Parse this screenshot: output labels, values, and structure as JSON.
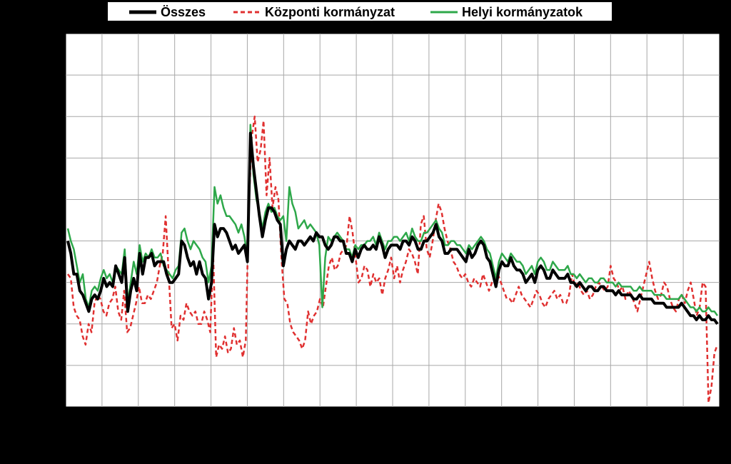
{
  "chart_data": {
    "type": "line",
    "title": "",
    "xlabel": "",
    "ylabel": "",
    "ylim": [
      0,
      9
    ],
    "x_gridlines": 18,
    "grid": true,
    "legend_position": "top",
    "series": [
      {
        "name": "Összes",
        "color": "#000000",
        "style": "solid-thick",
        "values": [
          4.0,
          3.7,
          3.2,
          3.2,
          2.8,
          2.7,
          2.5,
          2.3,
          2.6,
          2.7,
          2.6,
          2.8,
          3.1,
          2.9,
          3.0,
          2.9,
          3.4,
          3.2,
          3.0,
          3.6,
          2.3,
          2.8,
          3.1,
          2.8,
          3.7,
          3.2,
          3.6,
          3.6,
          3.7,
          3.4,
          3.5,
          3.5,
          3.5,
          3.2,
          3.0,
          3.0,
          3.1,
          3.2,
          4.0,
          3.9,
          3.6,
          3.4,
          3.5,
          3.2,
          3.5,
          3.2,
          3.1,
          2.6,
          3.0,
          4.4,
          4.1,
          4.3,
          4.3,
          4.2,
          4.0,
          3.8,
          3.9,
          3.7,
          3.8,
          3.9,
          3.5,
          6.6,
          5.8,
          5.2,
          4.6,
          4.1,
          4.5,
          4.8,
          4.8,
          4.7,
          4.5,
          4.4,
          3.4,
          3.8,
          4.0,
          3.9,
          3.8,
          4.0,
          4.0,
          3.9,
          4.0,
          4.1,
          4.0,
          4.2,
          4.1,
          4.1,
          3.9,
          3.8,
          3.9,
          4.1,
          4.1,
          4.0,
          4.0,
          3.7,
          3.7,
          3.5,
          3.8,
          3.6,
          3.8,
          3.9,
          3.8,
          3.8,
          3.9,
          3.8,
          4.1,
          3.9,
          3.6,
          3.8,
          3.9,
          3.9,
          3.9,
          3.8,
          4.0,
          4.0,
          3.9,
          4.1,
          4.0,
          3.8,
          3.8,
          4.0,
          4.0,
          4.1,
          4.2,
          4.4,
          4.1,
          4.0,
          3.7,
          3.7,
          3.8,
          3.8,
          3.8,
          3.7,
          3.6,
          3.5,
          3.8,
          3.6,
          3.7,
          3.9,
          4.0,
          3.9,
          3.6,
          3.5,
          3.2,
          2.9,
          3.3,
          3.5,
          3.4,
          3.4,
          3.6,
          3.4,
          3.3,
          3.3,
          3.2,
          3.0,
          3.1,
          3.2,
          3.0,
          3.3,
          3.4,
          3.3,
          3.1,
          3.1,
          3.3,
          3.2,
          3.1,
          3.1,
          3.1,
          3.2,
          3.0,
          3.0,
          2.9,
          3.0,
          2.9,
          2.8,
          2.9,
          2.9,
          2.8,
          2.8,
          2.9,
          2.9,
          2.8,
          2.8,
          2.8,
          2.7,
          2.8,
          2.7,
          2.7,
          2.7,
          2.7,
          2.6,
          2.6,
          2.7,
          2.6,
          2.6,
          2.6,
          2.6,
          2.5,
          2.5,
          2.5,
          2.5,
          2.4,
          2.4,
          2.4,
          2.4,
          2.4,
          2.5,
          2.4,
          2.3,
          2.2,
          2.2,
          2.1,
          2.2,
          2.1,
          2.1,
          2.2,
          2.1,
          2.1,
          2.0
        ]
      },
      {
        "name": "Központi kormányzat",
        "color": "#e03030",
        "style": "dashed",
        "values": [
          3.2,
          3.1,
          2.4,
          2.2,
          2.1,
          1.7,
          1.5,
          2.0,
          1.8,
          2.5,
          2.7,
          2.6,
          2.3,
          2.2,
          2.5,
          2.6,
          2.9,
          2.3,
          2.1,
          2.8,
          1.8,
          1.9,
          2.2,
          2.5,
          2.9,
          2.5,
          2.5,
          2.7,
          2.6,
          2.8,
          3.0,
          3.4,
          3.7,
          4.6,
          3.2,
          1.9,
          2.0,
          1.6,
          2.2,
          2.1,
          2.5,
          2.3,
          2.2,
          2.3,
          2.0,
          2.0,
          2.3,
          2.1,
          1.8,
          3.7,
          1.2,
          1.5,
          1.4,
          1.7,
          1.3,
          1.4,
          1.9,
          1.5,
          1.6,
          1.2,
          1.6,
          4.8,
          6.5,
          7.0,
          5.9,
          6.2,
          6.9,
          5.1,
          6.0,
          4.8,
          5.3,
          5.0,
          3.6,
          2.6,
          2.5,
          2.0,
          1.8,
          1.7,
          1.6,
          1.4,
          1.6,
          2.3,
          2.0,
          2.2,
          2.3,
          2.6,
          2.4,
          2.9,
          3.4,
          3.6,
          3.3,
          3.4,
          3.7,
          3.8,
          3.9,
          4.6,
          4.2,
          3.6,
          3.0,
          3.1,
          3.4,
          3.3,
          2.9,
          3.2,
          3.0,
          3.1,
          2.7,
          3.1,
          3.3,
          3.6,
          3.1,
          3.4,
          3.0,
          3.3,
          3.5,
          3.8,
          3.7,
          3.5,
          3.2,
          4.4,
          4.6,
          3.8,
          3.6,
          4.0,
          4.5,
          4.9,
          4.7,
          4.3,
          4.0,
          3.8,
          3.5,
          3.4,
          3.2,
          3.1,
          3.2,
          3.0,
          2.9,
          3.1,
          3.0,
          2.9,
          3.2,
          3.0,
          2.8,
          3.0,
          3.1,
          3.2,
          3.0,
          2.8,
          2.6,
          2.6,
          2.5,
          2.7,
          2.9,
          2.7,
          2.6,
          2.5,
          2.4,
          2.6,
          2.8,
          2.7,
          2.5,
          2.4,
          2.6,
          2.7,
          2.8,
          2.6,
          2.7,
          2.5,
          2.5,
          2.7,
          3.2,
          2.9,
          3.0,
          2.8,
          2.7,
          2.8,
          2.6,
          2.7,
          2.9,
          3.0,
          2.9,
          2.8,
          2.9,
          3.4,
          3.1,
          3.0,
          2.8,
          2.9,
          2.6,
          2.8,
          2.7,
          2.5,
          2.3,
          2.6,
          2.9,
          3.2,
          3.5,
          3.1,
          2.8,
          2.6,
          2.7,
          3.0,
          2.9,
          2.6,
          2.4,
          2.3,
          2.6,
          2.7,
          2.5,
          2.8,
          3.0,
          2.6,
          2.2,
          2.4,
          3.0,
          2.9,
          0.1,
          0.5,
          1.3,
          1.5
        ]
      },
      {
        "name": "Helyi kormányzatok",
        "color": "#2ea84a",
        "style": "solid",
        "values": [
          4.3,
          4.0,
          3.8,
          3.4,
          3.0,
          3.2,
          2.6,
          2.4,
          2.8,
          2.9,
          2.8,
          3.1,
          3.3,
          3.1,
          3.2,
          3.0,
          3.4,
          3.3,
          3.2,
          3.8,
          2.5,
          3.0,
          3.5,
          3.2,
          3.9,
          3.5,
          3.7,
          3.6,
          3.8,
          3.6,
          3.6,
          3.7,
          3.4,
          3.3,
          3.2,
          3.1,
          3.3,
          3.4,
          4.2,
          4.3,
          4.0,
          3.8,
          4.0,
          3.9,
          3.8,
          3.6,
          3.5,
          3.0,
          3.4,
          5.3,
          4.9,
          5.1,
          4.8,
          4.6,
          4.6,
          4.5,
          4.4,
          4.2,
          4.4,
          4.1,
          3.6,
          6.8,
          5.6,
          5.0,
          4.7,
          4.3,
          4.7,
          4.9,
          4.7,
          4.8,
          4.6,
          4.5,
          4.6,
          4.0,
          5.3,
          4.9,
          4.7,
          4.3,
          4.4,
          4.5,
          4.3,
          4.4,
          4.3,
          4.2,
          3.9,
          2.4,
          3.6,
          4.1,
          4.0,
          4.1,
          4.2,
          4.1,
          4.0,
          3.8,
          3.8,
          3.6,
          3.9,
          3.8,
          3.9,
          3.9,
          4.0,
          4.0,
          4.1,
          3.9,
          4.2,
          4.0,
          3.8,
          4.0,
          4.0,
          4.1,
          4.1,
          4.0,
          4.1,
          4.2,
          4.0,
          4.3,
          4.1,
          4.0,
          4.0,
          4.2,
          4.2,
          4.3,
          4.4,
          4.5,
          4.3,
          4.2,
          3.9,
          3.9,
          4.0,
          4.0,
          3.9,
          3.9,
          3.8,
          3.7,
          3.9,
          3.8,
          3.9,
          4.0,
          4.1,
          4.0,
          3.8,
          3.7,
          3.4,
          3.1,
          3.5,
          3.7,
          3.6,
          3.5,
          3.7,
          3.6,
          3.5,
          3.5,
          3.4,
          3.2,
          3.3,
          3.4,
          3.2,
          3.5,
          3.6,
          3.5,
          3.3,
          3.3,
          3.5,
          3.4,
          3.3,
          3.3,
          3.3,
          3.4,
          3.2,
          3.2,
          3.1,
          3.2,
          3.1,
          3.0,
          3.1,
          3.1,
          3.0,
          3.0,
          3.1,
          3.1,
          3.0,
          3.0,
          3.0,
          2.9,
          3.0,
          2.9,
          2.9,
          2.9,
          2.9,
          2.8,
          2.8,
          2.9,
          2.8,
          2.8,
          2.8,
          2.8,
          2.7,
          2.7,
          2.7,
          2.7,
          2.6,
          2.6,
          2.6,
          2.6,
          2.6,
          2.7,
          2.6,
          2.5,
          2.4,
          2.4,
          2.3,
          2.4,
          2.3,
          2.3,
          2.4,
          2.3,
          2.3,
          2.2
        ]
      }
    ]
  }
}
